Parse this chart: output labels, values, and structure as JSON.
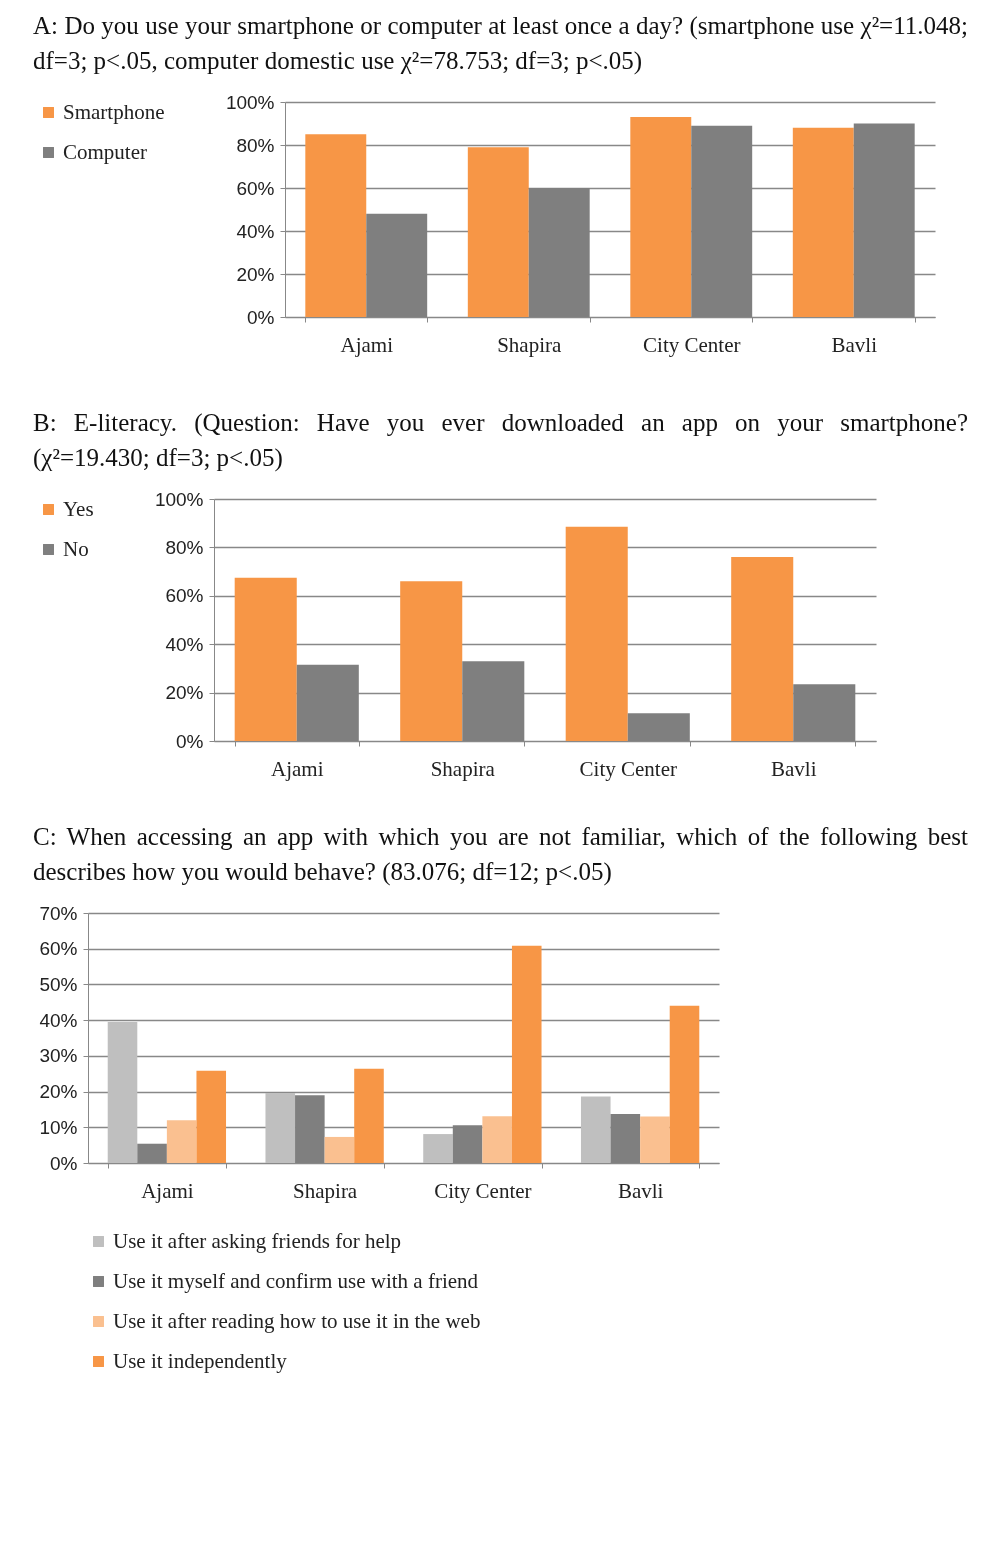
{
  "chart_data": [
    {
      "type": "bar",
      "title": "A: Do you use your smartphone or computer at least once a day? (smartphone use χ²=11.048; df=3; p<.05, computer domestic use χ²=78.753; df=3; p<.05)",
      "categories": [
        "Ajami",
        "Shapira",
        "City Center",
        "Bavli"
      ],
      "series": [
        {
          "name": "Smartphone",
          "color": "#f79646",
          "values": [
            85,
            79,
            93,
            88
          ]
        },
        {
          "name": "Computer",
          "color": "#7f7f7f",
          "values": [
            48,
            60,
            89,
            90
          ]
        }
      ],
      "ylim": [
        0,
        100
      ],
      "yticks": [
        {
          "value": 0,
          "label": "0%"
        },
        {
          "value": 20,
          "label": "20%"
        },
        {
          "value": 40,
          "label": "40%"
        },
        {
          "value": 60,
          "label": "60%"
        },
        {
          "value": 80,
          "label": "80%"
        },
        {
          "value": 100,
          "label": "100%"
        }
      ],
      "grid": "y",
      "legend": "left"
    },
    {
      "type": "bar",
      "title": "B: E-literacy. (Question: Have you ever downloaded an app on your smartphone? (χ²=19.430; df=3; p<.05)",
      "categories": [
        "Ajami",
        "Shapira",
        "City Center",
        "Bavli"
      ],
      "series": [
        {
          "name": "Yes",
          "color": "#f79646",
          "values": [
            67.5,
            66,
            88.5,
            76
          ]
        },
        {
          "name": "No",
          "color": "#7f7f7f",
          "values": [
            31.5,
            33,
            11.5,
            23.5
          ]
        }
      ],
      "ylim": [
        0,
        100
      ],
      "yticks": [
        {
          "value": 0,
          "label": "0%"
        },
        {
          "value": 20,
          "label": "20%"
        },
        {
          "value": 40,
          "label": "40%"
        },
        {
          "value": 60,
          "label": "60%"
        },
        {
          "value": 80,
          "label": "80%"
        },
        {
          "value": 100,
          "label": "100%"
        }
      ],
      "grid": "y",
      "legend": "left"
    },
    {
      "type": "bar",
      "title": "C: When accessing an app with which you are not familiar, which of the following best describes how you would behave? (83.076; df=12; p<.05)",
      "categories": [
        "Ajami",
        "Shapira",
        "City Center",
        "Bavli"
      ],
      "series": [
        {
          "name": "Use it after asking friends for help",
          "color": "#bfbfbf",
          "values": [
            39.5,
            19.6,
            8.1,
            18.6
          ]
        },
        {
          "name": "Use it myself and confirm use with a friend",
          "color": "#7f7f7f",
          "values": [
            5.4,
            19,
            10.6,
            13.7
          ]
        },
        {
          "name": "Use it after reading how to use it in the web",
          "color": "#fac090",
          "values": [
            12,
            7.3,
            13.1,
            13
          ]
        },
        {
          "name": "Use it independently",
          "color": "#f79646",
          "values": [
            25.8,
            26.4,
            60.8,
            44
          ]
        }
      ],
      "ylim": [
        0,
        70
      ],
      "yticks": [
        {
          "value": 0,
          "label": "0%"
        },
        {
          "value": 10,
          "label": "10%"
        },
        {
          "value": 20,
          "label": "20%"
        },
        {
          "value": 30,
          "label": "30%"
        },
        {
          "value": 40,
          "label": "40%"
        },
        {
          "value": 50,
          "label": "50%"
        },
        {
          "value": 60,
          "label": "60%"
        },
        {
          "value": 70,
          "label": "70%"
        }
      ],
      "grid": "y",
      "legend": "bottom"
    }
  ]
}
